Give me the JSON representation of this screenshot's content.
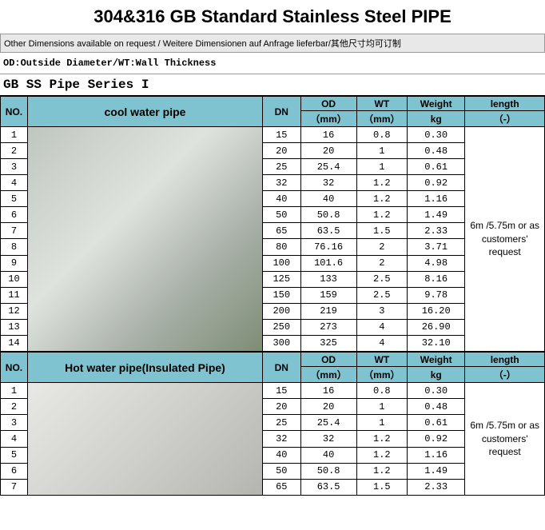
{
  "title": "304&316 GB Standard Stainless Steel PIPE",
  "subtitle": "Other Dimensions available on request / Weitere Dimensionen auf Anfrage lieferbar/其他尺寸均可订制",
  "legend": "OD:Outside Diameter/WT:Wall Thickness",
  "series_title": "GB SS Pipe Series I",
  "colors": {
    "header_bg": "#7fc3d0",
    "page_bg": "#ffffff",
    "border": "#000000",
    "subtitle_bg": "#e8e8e8"
  },
  "headers": {
    "no": "NO.",
    "dn": "DN",
    "od_top": "OD",
    "od_sub": "（mm）",
    "wt_top": "WT",
    "wt_sub": "（mm）",
    "weight_top": "Weight",
    "weight_sub": "kg",
    "length_top": "length",
    "length_sub": "（-）"
  },
  "section1": {
    "label": "cool water pipe",
    "length_note": "6m /5.75m or as customers' request",
    "rows": [
      {
        "no": "1",
        "dn": "15",
        "od": "16",
        "wt": "0.8",
        "wg": "0.30"
      },
      {
        "no": "2",
        "dn": "20",
        "od": "20",
        "wt": "1",
        "wg": "0.48"
      },
      {
        "no": "3",
        "dn": "25",
        "od": "25.4",
        "wt": "1",
        "wg": "0.61"
      },
      {
        "no": "4",
        "dn": "32",
        "od": "32",
        "wt": "1.2",
        "wg": "0.92"
      },
      {
        "no": "5",
        "dn": "40",
        "od": "40",
        "wt": "1.2",
        "wg": "1.16"
      },
      {
        "no": "6",
        "dn": "50",
        "od": "50.8",
        "wt": "1.2",
        "wg": "1.49"
      },
      {
        "no": "7",
        "dn": "65",
        "od": "63.5",
        "wt": "1.5",
        "wg": "2.33"
      },
      {
        "no": "8",
        "dn": "80",
        "od": "76.16",
        "wt": "2",
        "wg": "3.71"
      },
      {
        "no": "9",
        "dn": "100",
        "od": "101.6",
        "wt": "2",
        "wg": "4.98"
      },
      {
        "no": "10",
        "dn": "125",
        "od": "133",
        "wt": "2.5",
        "wg": "8.16"
      },
      {
        "no": "11",
        "dn": "150",
        "od": "159",
        "wt": "2.5",
        "wg": "9.78"
      },
      {
        "no": "12",
        "dn": "200",
        "od": "219",
        "wt": "3",
        "wg": "16.20"
      },
      {
        "no": "13",
        "dn": "250",
        "od": "273",
        "wt": "4",
        "wg": "26.90"
      },
      {
        "no": "14",
        "dn": "300",
        "od": "325",
        "wt": "4",
        "wg": "32.10"
      }
    ]
  },
  "section2": {
    "label": "Hot water pipe(Insulated Pipe)",
    "length_note": "6m /5.75m or as customers' request",
    "rows": [
      {
        "no": "1",
        "dn": "15",
        "od": "16",
        "wt": "0.8",
        "wg": "0.30"
      },
      {
        "no": "2",
        "dn": "20",
        "od": "20",
        "wt": "1",
        "wg": "0.48"
      },
      {
        "no": "3",
        "dn": "25",
        "od": "25.4",
        "wt": "1",
        "wg": "0.61"
      },
      {
        "no": "4",
        "dn": "32",
        "od": "32",
        "wt": "1.2",
        "wg": "0.92"
      },
      {
        "no": "5",
        "dn": "40",
        "od": "40",
        "wt": "1.2",
        "wg": "1.16"
      },
      {
        "no": "6",
        "dn": "50",
        "od": "50.8",
        "wt": "1.2",
        "wg": "1.49"
      },
      {
        "no": "7",
        "dn": "65",
        "od": "63.5",
        "wt": "1.5",
        "wg": "2.33"
      }
    ]
  }
}
